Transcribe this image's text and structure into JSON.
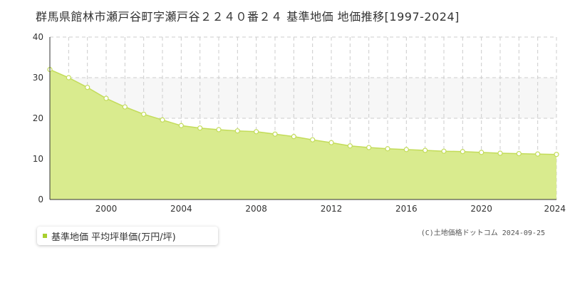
{
  "title": "群馬県館林市瀬戸谷町字瀬戸谷２２４０番２４ 基準地価 地価推移[1997-2024]",
  "legend": {
    "label": "基準地価 平均坪単価(万円/坪)"
  },
  "copyright": "(C)土地価格ドットコム 2024-09-25",
  "colors": {
    "fill": "#d9eb8e",
    "line": "#c3dc5a",
    "marker_fill": "#ffffff",
    "grid": "#cccccc",
    "band": "#f7f7f7",
    "legend_marker": "#a8cf2e"
  },
  "chart_data": {
    "type": "area",
    "title": "群馬県館林市瀬戸谷町字瀬戸谷２２４０番２４ 基準地価 地価推移[1997-2024]",
    "xlabel": "",
    "ylabel": "",
    "xlim": [
      1997,
      2024
    ],
    "ylim": [
      0,
      40
    ],
    "x_ticks": [
      2000,
      2004,
      2008,
      2012,
      2016,
      2020,
      2024
    ],
    "y_ticks": [
      0,
      10,
      20,
      30,
      40
    ],
    "grid": true,
    "legend_position": "bottom-left",
    "series": [
      {
        "name": "基準地価 平均坪単価(万円/坪)",
        "x": [
          1997,
          1998,
          1999,
          2000,
          2001,
          2002,
          2003,
          2004,
          2005,
          2006,
          2007,
          2008,
          2009,
          2010,
          2011,
          2012,
          2013,
          2014,
          2015,
          2016,
          2017,
          2018,
          2019,
          2020,
          2021,
          2022,
          2023,
          2024
        ],
        "values": [
          32.0,
          30.0,
          27.6,
          24.9,
          22.8,
          21.0,
          19.6,
          18.2,
          17.6,
          17.2,
          16.9,
          16.7,
          16.1,
          15.5,
          14.7,
          14.0,
          13.2,
          12.8,
          12.5,
          12.3,
          12.1,
          11.9,
          11.8,
          11.6,
          11.4,
          11.3,
          11.2,
          11.1
        ]
      }
    ]
  }
}
